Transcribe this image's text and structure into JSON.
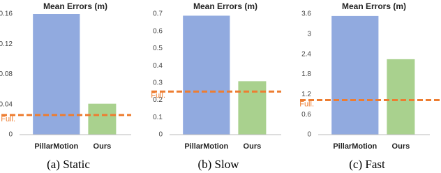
{
  "chart_data": [
    {
      "type": "bar",
      "title": "Mean Errors (m)",
      "caption": "(a) Static",
      "categories": [
        "PillarMotion",
        "Ours"
      ],
      "values": [
        0.16,
        0.041
      ],
      "colors": [
        "#91aadf",
        "#a9d18e"
      ],
      "ylim": [
        0,
        0.16
      ],
      "yticks": [
        0,
        0.04,
        0.08,
        0.12,
        0.16
      ],
      "grid": false,
      "reference_line": {
        "label": "Full.",
        "value": 0.026,
        "color": "#ed7d31"
      }
    },
    {
      "type": "bar",
      "title": "Mean Errors (m)",
      "caption": "(b) Slow",
      "categories": [
        "PillarMotion",
        "Ours"
      ],
      "values": [
        0.69,
        0.31
      ],
      "colors": [
        "#91aadf",
        "#a9d18e"
      ],
      "ylim": [
        0,
        0.7
      ],
      "yticks": [
        0,
        0.1,
        0.2,
        0.3,
        0.4,
        0.5,
        0.6,
        0.7
      ],
      "grid": false,
      "reference_line": {
        "label": "Full.",
        "value": 0.25,
        "color": "#ed7d31"
      }
    },
    {
      "type": "bar",
      "title": "Mean Errors (m)",
      "caption": "(c) Fast",
      "categories": [
        "PillarMotion",
        "Ours"
      ],
      "values": [
        3.54,
        2.25
      ],
      "colors": [
        "#91aadf",
        "#a9d18e"
      ],
      "ylim": [
        0,
        3.6
      ],
      "yticks": [
        0,
        0.6,
        1.2,
        1.8,
        2.4,
        3,
        3.6
      ],
      "grid": false,
      "reference_line": {
        "label": "Full.",
        "value": 1.03,
        "color": "#ed7d31"
      }
    }
  ]
}
